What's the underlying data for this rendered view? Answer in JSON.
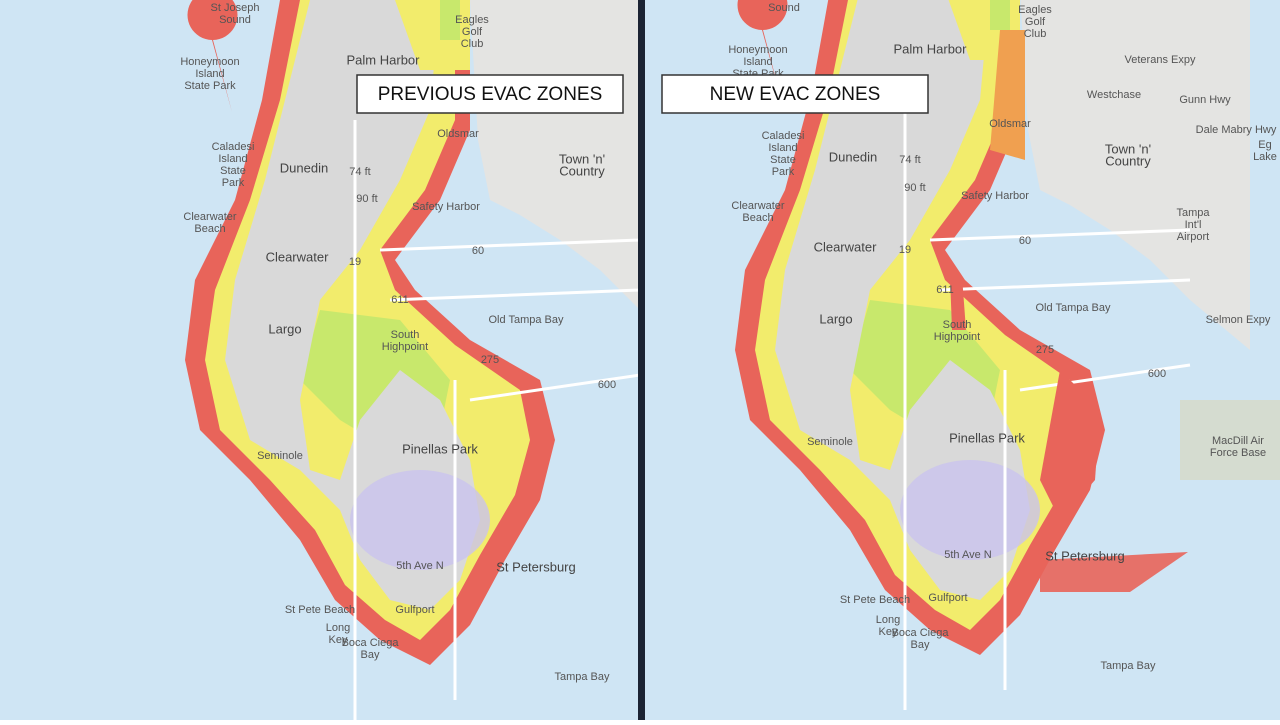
{
  "left": {
    "title": "PREVIOUS EVAC ZONES",
    "labels": [
      [
        "St Joseph",
        "Sound"
      ],
      [
        "Honeymoon",
        "Island",
        "State Park"
      ],
      "Palm Harbor",
      [
        "Eagles",
        "Golf",
        "Club"
      ],
      [
        "Caladesi",
        "Island",
        "State",
        "Park"
      ],
      "Dunedin",
      "74 ft",
      "Oldsmar",
      [
        "Town 'n'",
        "Country"
      ],
      "Safety Harbor",
      [
        "Clearwater",
        "Beach"
      ],
      "Clearwater",
      "Old Tampa Bay",
      "Largo",
      [
        "South",
        "Highpoint"
      ],
      "Seminole",
      "Pinellas Park",
      "5th Ave N",
      "St Petersburg",
      "St Pete Beach",
      [
        "Long",
        "Key"
      ],
      [
        "Boca Ciega",
        "Bay"
      ],
      "Gulfport",
      "Tampa Bay",
      "60",
      "90 ft",
      "19",
      "600",
      "275",
      "611"
    ]
  },
  "right": {
    "title": "NEW EVAC ZONES",
    "labels": [
      "Sound",
      [
        "Honeymoon",
        "Island",
        "State Park"
      ],
      "Palm Harbor",
      [
        "Eagles",
        "Golf",
        "Club"
      ],
      [
        "Caladesi",
        "Island",
        "State",
        "Park"
      ],
      "Dunedin",
      "74 ft",
      "Oldsmar",
      [
        "Town 'n'",
        "Country"
      ],
      "Safety Harbor",
      [
        "Clearwater",
        "Beach"
      ],
      "Clearwater",
      "Old Tampa Bay",
      "Largo",
      [
        "South",
        "Highpoint"
      ],
      "Seminole",
      "Pinellas Park",
      "5th Ave N",
      "St Petersburg",
      "St Pete Beach",
      [
        "Long",
        "Key"
      ],
      [
        "Boca Ciega",
        "Bay"
      ],
      "Gulfport",
      "Tampa Bay",
      "60",
      "90 ft",
      "19",
      "600",
      "275",
      "611",
      "Westchase",
      "Gunn Hwy",
      "Veterans Expy",
      "Dale Mabry Hwy",
      [
        "Tampa",
        "Int'l",
        "Airport"
      ],
      [
        "MacDill Air",
        "Force Base"
      ],
      "Selmon Expy",
      [
        "Eg",
        "Lake"
      ]
    ]
  }
}
